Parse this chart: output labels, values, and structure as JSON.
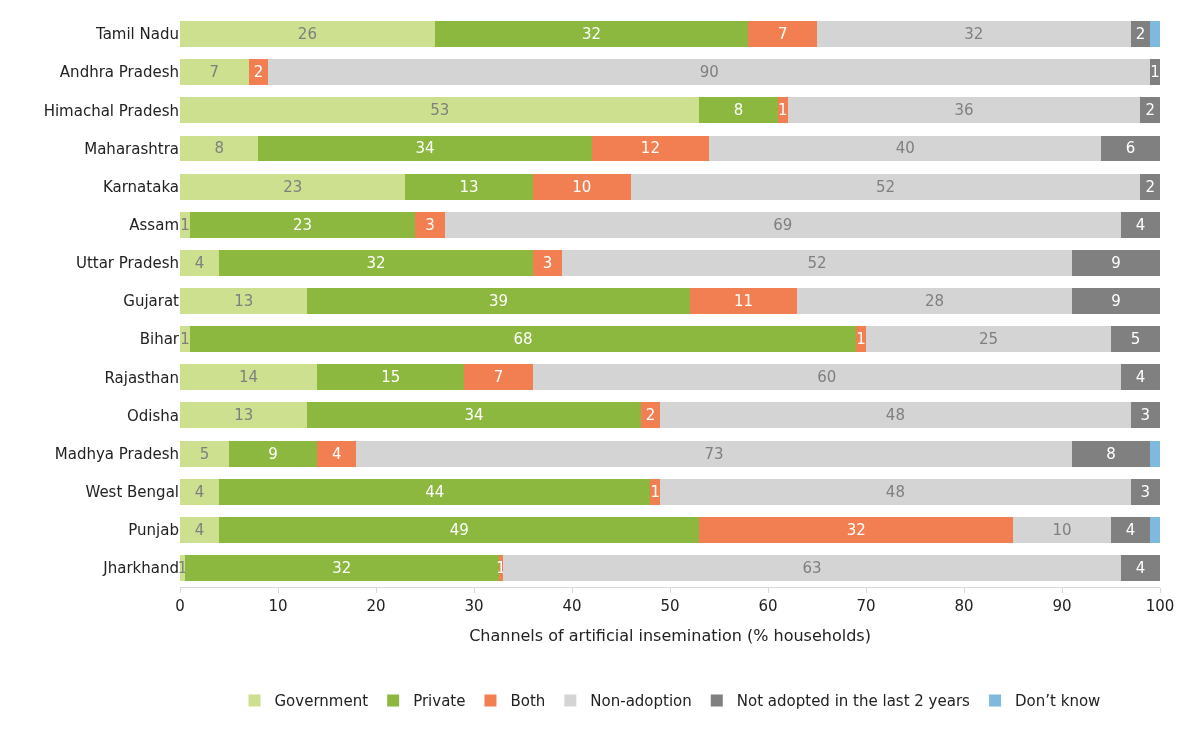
{
  "chart_data": {
    "type": "bar",
    "orientation": "horizontal",
    "stacked": true,
    "xlabel": "Channels of artificial insemination (% households)",
    "categories": [
      "Tamil Nadu",
      "Andhra Pradesh",
      "Himachal Pradesh",
      "Maharashtra",
      "Karnataka",
      "Assam",
      "Uttar Pradesh",
      "Gujarat",
      "Bihar",
      "Rajasthan",
      "Odisha",
      "Madhya Pradesh",
      "West Bengal",
      "Punjab",
      "Jharkhand"
    ],
    "series": [
      {
        "name": "Government",
        "color": "#cde08f",
        "values": [
          26,
          7,
          53,
          8,
          23,
          1,
          4,
          13,
          1,
          14,
          13,
          5,
          4,
          4,
          0.5
        ],
        "value_labels": [
          "26",
          "7",
          "53",
          "8",
          "23",
          "1",
          "4",
          "13",
          "1",
          "14",
          "13",
          "5",
          "4",
          "4",
          "1"
        ]
      },
      {
        "name": "Private",
        "color": "#8cb83f",
        "values": [
          32,
          null,
          8,
          34,
          13,
          23,
          32,
          39,
          68,
          15,
          34,
          9,
          44,
          49,
          32
        ],
        "value_labels": [
          "32",
          null,
          "8",
          "34",
          "13",
          "23",
          "32",
          "39",
          "68",
          "15",
          "34",
          "9",
          "44",
          "49",
          "32"
        ]
      },
      {
        "name": "Both",
        "color": "#f27f52",
        "values": [
          7,
          2,
          1,
          12,
          10,
          3,
          3,
          11,
          1,
          7,
          2,
          4,
          1,
          32,
          0.5
        ],
        "value_labels": [
          "7",
          "2",
          "1",
          "12",
          "10",
          "3",
          "3",
          "11",
          "1",
          "7",
          "2",
          "4",
          "1",
          "32",
          "1"
        ]
      },
      {
        "name": "Non-adoption",
        "color": "#d4d4d4",
        "values": [
          32,
          90,
          36,
          40,
          52,
          69,
          52,
          28,
          25,
          60,
          48,
          73,
          48,
          10,
          63
        ],
        "value_labels": [
          "32",
          "90",
          "36",
          "40",
          "52",
          "69",
          "52",
          "28",
          "25",
          "60",
          "48",
          "73",
          "48",
          "10",
          "63"
        ]
      },
      {
        "name": "Not adopted in the last 2 years",
        "color": "#808080",
        "values": [
          2,
          1,
          2,
          6,
          2,
          4,
          9,
          9,
          5,
          4,
          3,
          8,
          3,
          4,
          4
        ],
        "value_labels": [
          "2",
          "1",
          "2",
          "6",
          "2",
          "4",
          "9",
          "9",
          "5",
          "4",
          "3",
          "8",
          "3",
          "4",
          "4"
        ]
      },
      {
        "name": "Don’t know",
        "color": "#80b9de",
        "values": [
          1,
          null,
          null,
          null,
          null,
          null,
          null,
          null,
          null,
          null,
          null,
          1,
          null,
          1,
          null
        ],
        "value_labels": [
          null,
          null,
          null,
          null,
          null,
          null,
          null,
          null,
          null,
          null,
          null,
          null,
          null,
          null,
          null
        ]
      }
    ],
    "xlim": [
      0,
      100
    ],
    "xticks": [
      0,
      10,
      20,
      30,
      40,
      50,
      60,
      70,
      80,
      90,
      100
    ],
    "legend": "bottom"
  }
}
